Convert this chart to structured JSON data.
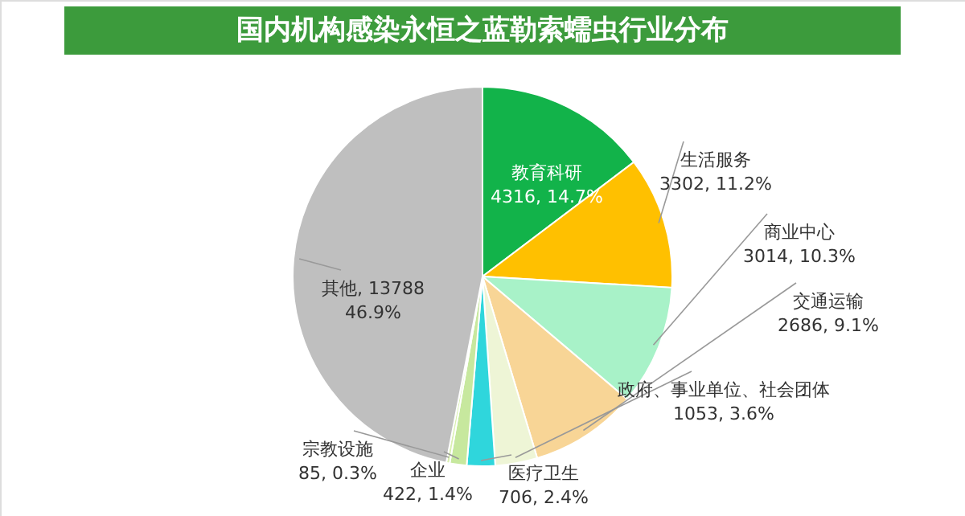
{
  "chart_data": {
    "type": "pie",
    "title": "国内机构感染永恒之蓝勒索蠕虫行业分布",
    "categories": [
      "教育科研",
      "生活服务",
      "商业中心",
      "交通运输",
      "政府、事业单位、社会团体",
      "医疗卫生",
      "企业",
      "宗教设施",
      "其他"
    ],
    "values": [
      4316,
      3302,
      3014,
      2686,
      1053,
      706,
      422,
      85,
      13788
    ],
    "value_labels": [
      "\n4316, 14.7%",
      "\n3302, 11.2%",
      "\n3014, 10.3%",
      "\n2686, 9.1%",
      "\n1053, 3.6%",
      "\n706, 2.4%",
      "\n422, 1.4%",
      "\n85, 0.3%",
      ", 13788\n46.9%"
    ],
    "colors": [
      "#12b34a",
      "#ffc000",
      "#a8f2c8",
      "#f8d596",
      "#eef5d6",
      "#2fd6dc",
      "#c7e89e",
      "#d9f0b0",
      "#bfbfbf"
    ]
  }
}
